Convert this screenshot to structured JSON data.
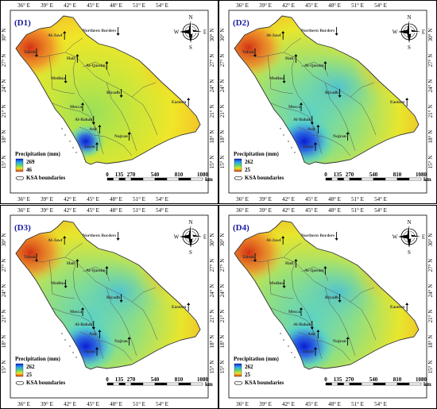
{
  "panels": [
    {
      "id": "D1",
      "label": "(D1)",
      "legend": {
        "title": "Precipitation (mm)",
        "max": "269",
        "min": "46",
        "boundary_label": "KSA boundaries"
      },
      "hotspot": "southwest"
    },
    {
      "id": "D2",
      "label": "(D2)",
      "legend": {
        "title": "Precipitation (mm)",
        "max": "262",
        "min": "25",
        "boundary_label": "KSA boundaries"
      },
      "hotspot": "southwest"
    },
    {
      "id": "D3",
      "label": "(D3)",
      "legend": {
        "title": "Precipitation (mm)",
        "max": "262",
        "min": "25",
        "boundary_label": "KSA boundaries"
      },
      "hotspot": "southwest"
    },
    {
      "id": "D4",
      "label": "(D4)",
      "legend": {
        "title": "Precipitation (mm)",
        "max": "262",
        "min": "25",
        "boundary_label": "KSA boundaries"
      },
      "hotspot": "southwest"
    }
  ],
  "longitude_labels": [
    "36° E",
    "39° E",
    "42° E",
    "45° E",
    "48° E",
    "51° E",
    "54° E"
  ],
  "latitude_labels": [
    "30° N",
    "27° N",
    "24° N",
    "21° N",
    "18° N",
    "15° N"
  ],
  "regions": [
    "Al-Jawf",
    "Tabuk",
    "Northern Borders",
    "Hail",
    "Al-Qassim",
    "Medina",
    "Riyadh",
    "Eastern",
    "Mecca",
    "Al-Bahah",
    "Asir",
    "Najran",
    "Jazan"
  ],
  "scale_bar": {
    "labels": [
      "0",
      "135",
      "270",
      "540",
      "810",
      "1080"
    ],
    "unit": "km"
  },
  "compass": {
    "n": "N",
    "s": "S",
    "e": "E",
    "w": "W"
  },
  "colors": {
    "high": "#0a1ed2",
    "mid": "#5ad2c8",
    "low_mid": "#e6e628",
    "low": "#d23214",
    "lowest": "#c8321e"
  }
}
